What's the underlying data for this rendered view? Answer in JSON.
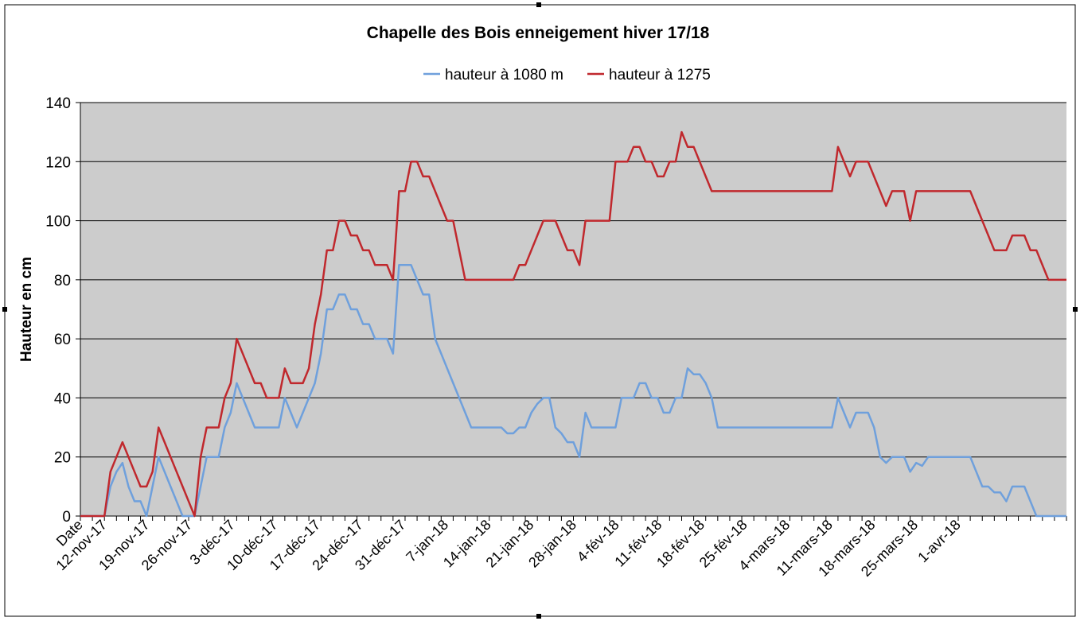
{
  "chart_data": {
    "type": "line",
    "title": "Chapelle des Bois enneigement hiver 17/18",
    "xlabel": "",
    "ylabel": "Hauteur en cm",
    "ylim": [
      0,
      140
    ],
    "yticks": [
      0,
      20,
      40,
      60,
      80,
      100,
      120,
      140
    ],
    "grid": true,
    "legend_position": "top",
    "x_start": "Date",
    "xtick_labels": [
      "Date",
      "12-nov-17",
      "19-nov-17",
      "26-nov-17",
      "3-déc-17",
      "10-déc-17",
      "17-déc-17",
      "24-déc-17",
      "31-déc-17",
      "7-jan-18",
      "14-jan-18",
      "21-jan-18",
      "28-jan-18",
      "4-fév-18",
      "11-fév-18",
      "18-fév-18",
      "25-fév-18",
      "4-mars-18",
      "11-mars-18",
      "18-mars-18",
      "25-mars-18",
      "1-avr-18"
    ],
    "series": [
      {
        "name": "hauteur à 1080 m",
        "color": "#6fa0dc",
        "values": [
          0,
          0,
          0,
          0,
          0,
          10,
          15,
          18,
          10,
          5,
          5,
          0,
          10,
          20,
          15,
          10,
          5,
          0,
          0,
          0,
          10,
          20,
          20,
          20,
          30,
          35,
          45,
          40,
          35,
          30,
          30,
          30,
          30,
          30,
          40,
          35,
          30,
          35,
          40,
          45,
          55,
          70,
          70,
          75,
          75,
          70,
          70,
          65,
          65,
          60,
          60,
          60,
          55,
          85,
          85,
          85,
          80,
          75,
          75,
          60,
          55,
          50,
          45,
          40,
          35,
          30,
          30,
          30,
          30,
          30,
          30,
          28,
          28,
          30,
          30,
          35,
          38,
          40,
          40,
          30,
          28,
          25,
          25,
          20,
          35,
          30,
          30,
          30,
          30,
          30,
          40,
          40,
          40,
          45,
          45,
          40,
          40,
          35,
          35,
          40,
          40,
          50,
          48,
          48,
          45,
          40,
          30,
          30,
          30,
          30,
          30,
          30,
          30,
          30,
          30,
          30,
          30,
          30,
          30,
          30,
          30,
          30,
          30,
          30,
          30,
          30,
          40,
          35,
          30,
          35,
          35,
          35,
          30,
          20,
          18,
          20,
          20,
          20,
          15,
          18,
          17,
          20,
          20,
          20,
          20,
          20,
          20,
          20,
          20,
          15,
          10,
          10,
          8,
          8,
          5,
          10,
          10,
          10,
          5,
          0,
          0,
          0,
          0,
          0,
          0
        ]
      },
      {
        "name": "hauteur à 1275",
        "color": "#c0282d",
        "values": [
          0,
          0,
          0,
          0,
          0,
          15,
          20,
          25,
          20,
          15,
          10,
          10,
          15,
          30,
          25,
          20,
          15,
          10,
          5,
          0,
          20,
          30,
          30,
          30,
          40,
          45,
          60,
          55,
          50,
          45,
          45,
          40,
          40,
          40,
          50,
          45,
          45,
          45,
          50,
          65,
          75,
          90,
          90,
          100,
          100,
          95,
          95,
          90,
          90,
          85,
          85,
          85,
          80,
          110,
          110,
          120,
          120,
          115,
          115,
          110,
          105,
          100,
          100,
          90,
          80,
          80,
          80,
          80,
          80,
          80,
          80,
          80,
          80,
          85,
          85,
          90,
          95,
          100,
          100,
          100,
          95,
          90,
          90,
          85,
          100,
          100,
          100,
          100,
          100,
          120,
          120,
          120,
          125,
          125,
          120,
          120,
          115,
          115,
          120,
          120,
          130,
          125,
          125,
          120,
          115,
          110,
          110,
          110,
          110,
          110,
          110,
          110,
          110,
          110,
          110,
          110,
          110,
          110,
          110,
          110,
          110,
          110,
          110,
          110,
          110,
          110,
          125,
          120,
          115,
          120,
          120,
          120,
          115,
          110,
          105,
          110,
          110,
          110,
          100,
          110,
          110,
          110,
          110,
          110,
          110,
          110,
          110,
          110,
          110,
          105,
          100,
          95,
          90,
          90,
          90,
          95,
          95,
          95,
          90,
          90,
          85,
          80,
          80,
          80,
          80
        ]
      }
    ]
  }
}
